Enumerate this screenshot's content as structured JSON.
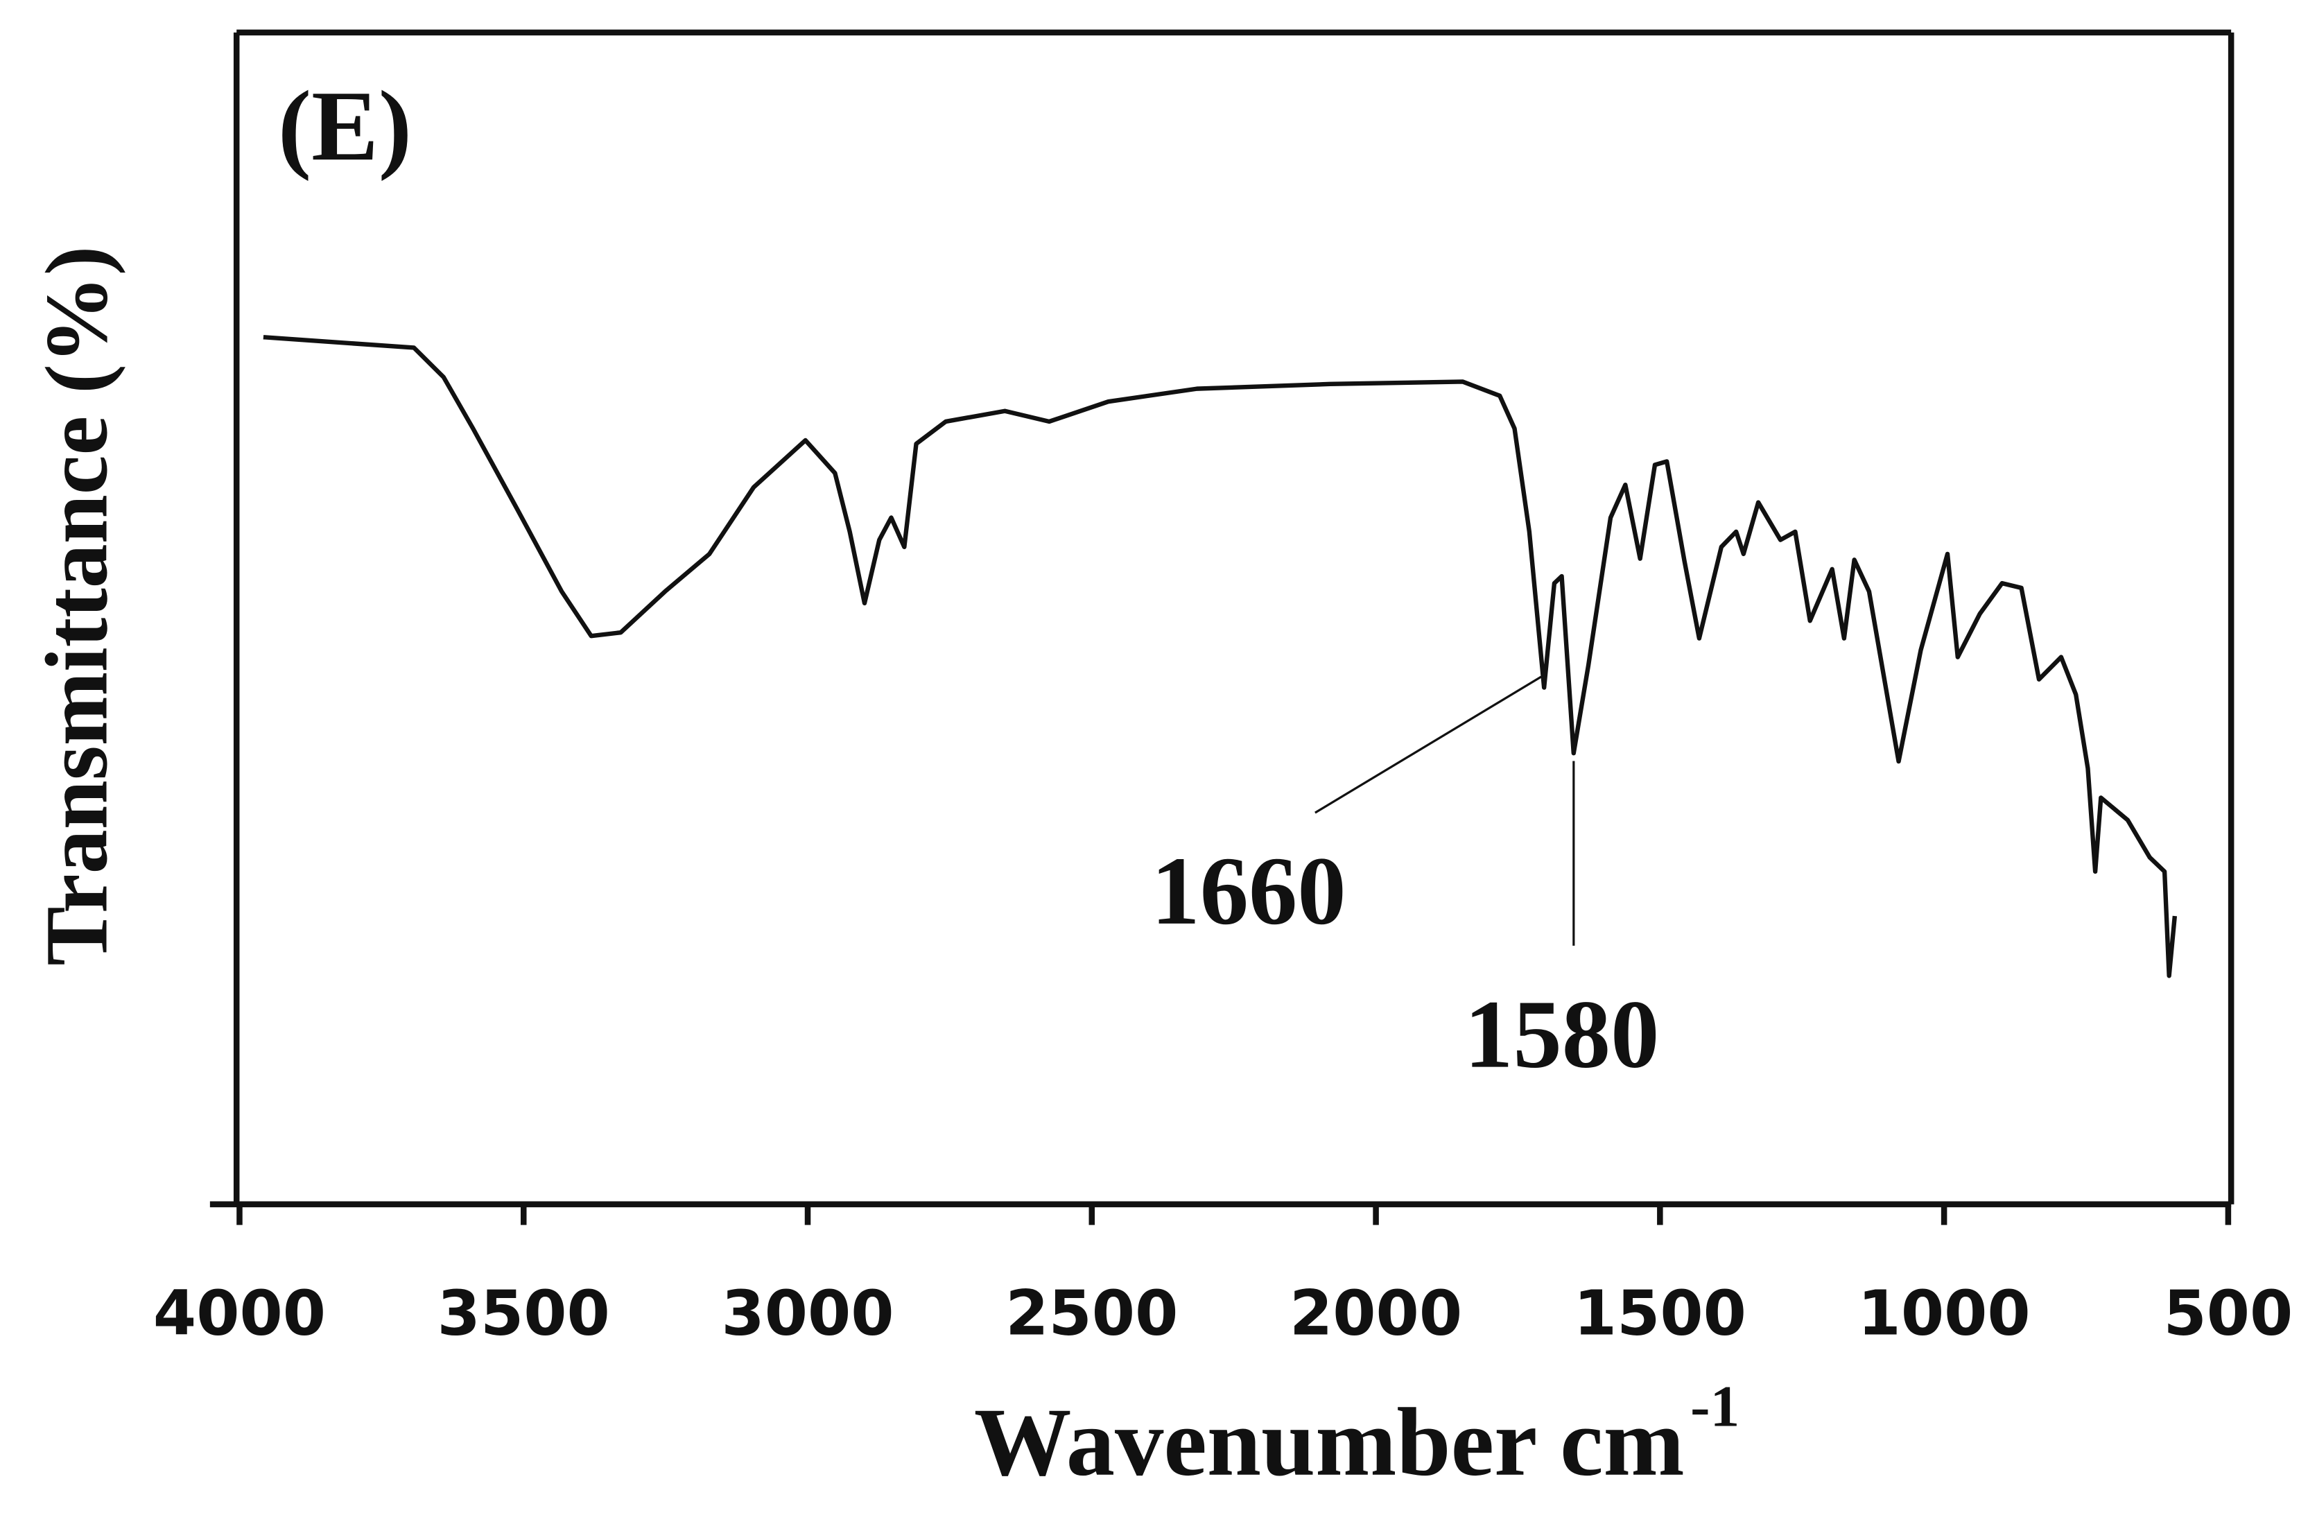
{
  "chart_data": {
    "type": "line",
    "panel_label": "(E)",
    "xlabel": "Wavenumber cm",
    "xlabel_superscript": "-1",
    "ylabel": "Transmittance (%)",
    "color": "#111111",
    "x": [
      3958,
      3693,
      3641,
      3589,
      3511,
      3433,
      3381,
      3329,
      3251,
      3173,
      3095,
      3004,
      2952,
      2926,
      2900,
      2874,
      2853,
      2830,
      2809,
      2757,
      2653,
      2575,
      2471,
      2315,
      2081,
      1847,
      1782,
      1756,
      1730,
      1704,
      1686,
      1673,
      1652,
      1626,
      1587,
      1561,
      1535,
      1509,
      1488,
      1457,
      1431,
      1392,
      1366,
      1353,
      1327,
      1288,
      1262,
      1236,
      1197,
      1176,
      1158,
      1132,
      1080,
      1041,
      994,
      976,
      937,
      898,
      864,
      833,
      794,
      768,
      747,
      734,
      724,
      677,
      638,
      612,
      604,
      594
    ],
    "values": [
      74.0,
      73.1,
      70.6,
      66.2,
      59.3,
      52.3,
      48.5,
      48.8,
      52.3,
      55.5,
      61.2,
      65.2,
      62.4,
      57.4,
      51.3,
      56.7,
      58.6,
      56.1,
      64.9,
      66.8,
      67.7,
      66.8,
      68.5,
      69.6,
      70.0,
      70.2,
      69.0,
      66.2,
      57.4,
      44.1,
      53.0,
      53.6,
      38.5,
      46.0,
      58.6,
      61.4,
      55.1,
      63.1,
      63.4,
      54.9,
      48.3,
      56.1,
      57.4,
      55.5,
      59.9,
      56.7,
      57.4,
      49.8,
      54.2,
      48.3,
      55.0,
      52.3,
      37.8,
      47.3,
      55.5,
      46.7,
      50.4,
      53.0,
      52.6,
      44.8,
      46.7,
      43.5,
      37.2,
      28.4,
      34.7,
      32.8,
      29.6,
      28.4,
      19.5,
      24.6
    ],
    "xlim": [
      4000,
      500
    ],
    "ylim": [
      0,
      100
    ],
    "xticks": [
      4000,
      3500,
      3000,
      2500,
      2000,
      1500,
      1000,
      500
    ],
    "annotations": [
      "1660",
      "1580"
    ]
  }
}
